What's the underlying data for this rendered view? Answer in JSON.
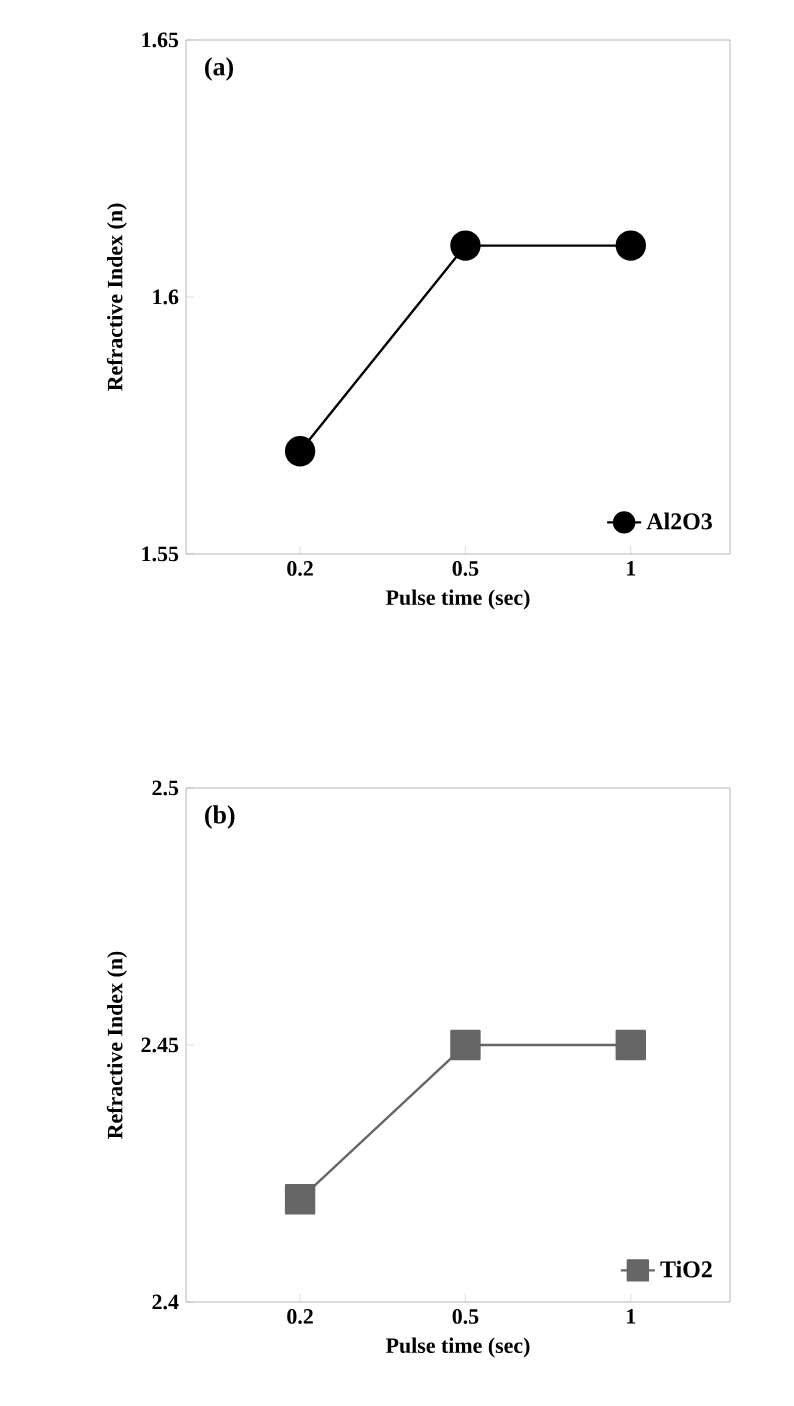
{
  "chart_data": [
    {
      "type": "line",
      "categories": [
        "0.2",
        "0.5",
        "1"
      ],
      "xlabel": "Pulse time (sec)",
      "ylabel": "Refractive Index (n)",
      "ylim": [
        1.55,
        1.65
      ],
      "yticks": [
        1.55,
        1.6,
        1.65
      ],
      "annotations": [
        "(a)"
      ],
      "legend": "bottom right",
      "marker": "circle",
      "series": [
        {
          "name": "Al2O3",
          "color": "#000000",
          "values": [
            1.57,
            1.61,
            1.61
          ]
        }
      ]
    },
    {
      "type": "line",
      "categories": [
        "0.2",
        "0.5",
        "1"
      ],
      "xlabel": "Pulse time (sec)",
      "ylabel": "Refractive Index (n)",
      "ylim": [
        2.4,
        2.5
      ],
      "yticks": [
        2.4,
        2.45,
        2.5
      ],
      "annotations": [
        "(b)"
      ],
      "legend": "bottom right",
      "marker": "square",
      "series": [
        {
          "name": "TiO2",
          "color": "#666666",
          "values": [
            2.42,
            2.45,
            2.45
          ]
        }
      ]
    }
  ]
}
